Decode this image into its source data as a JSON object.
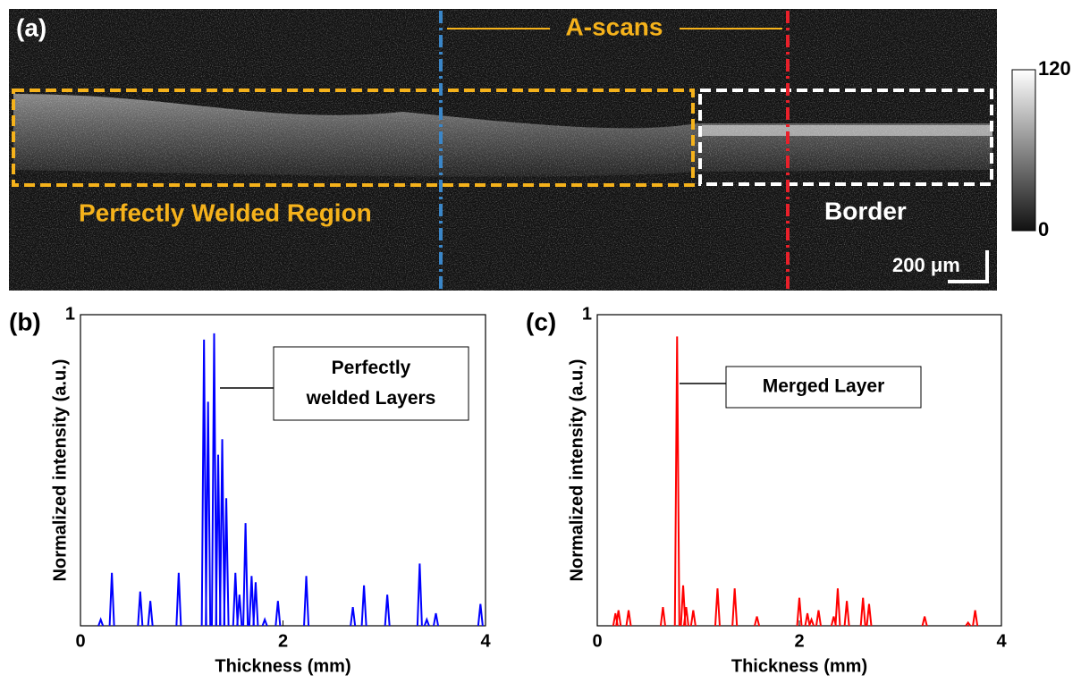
{
  "image_panel": {
    "label": "(a)",
    "a_scans": "A-scans",
    "region": "Perfectly Welded Region",
    "border": "Border",
    "scale_bar": "200 μm",
    "colorbar": {
      "lim": [
        0,
        120
      ],
      "ticks": [
        0,
        120
      ]
    }
  },
  "chart_data": [
    {
      "type": "line",
      "panel": "(b)",
      "xlabel": "Thickness (mm)",
      "ylabel": "Normalized intensity (a.u.)",
      "annotation": "Perfectly welded Layers",
      "xlim": [
        0,
        4
      ],
      "ylim": [
        0,
        1
      ],
      "xticks": [
        0,
        2,
        4
      ],
      "yticks": [
        1
      ],
      "series": [
        {
          "color": "#0000ff",
          "x": [
            0.2,
            0.31,
            0.59,
            0.69,
            0.97,
            1.22,
            1.26,
            1.32,
            1.36,
            1.4,
            1.44,
            1.53,
            1.57,
            1.63,
            1.69,
            1.73,
            1.82,
            1.95,
            2.23,
            2.69,
            2.8,
            3.03,
            3.35,
            3.42,
            3.51,
            3.95
          ],
          "values": [
            0.02,
            0.17,
            0.11,
            0.08,
            0.17,
            0.92,
            0.72,
            0.94,
            0.55,
            0.6,
            0.41,
            0.17,
            0.1,
            0.33,
            0.16,
            0.14,
            0.02,
            0.08,
            0.16,
            0.06,
            0.13,
            0.1,
            0.2,
            0.02,
            0.04,
            0.07
          ]
        }
      ]
    },
    {
      "type": "line",
      "panel": "(c)",
      "xlabel": "Thickness (mm)",
      "ylabel": "Normalized intensity (a.u.)",
      "annotation": "Merged Layer",
      "xlim": [
        0,
        4
      ],
      "ylim": [
        0,
        1
      ],
      "xticks": [
        0,
        2,
        4
      ],
      "yticks": [
        1
      ],
      "series": [
        {
          "color": "#ff0000",
          "x": [
            0.18,
            0.21,
            0.31,
            0.65,
            0.79,
            0.85,
            0.88,
            0.95,
            1.19,
            1.36,
            1.58,
            2.0,
            2.08,
            2.12,
            2.19,
            2.34,
            2.38,
            2.47,
            2.63,
            2.69,
            3.24,
            3.67,
            3.74
          ],
          "values": [
            0.04,
            0.05,
            0.05,
            0.06,
            0.93,
            0.13,
            0.06,
            0.05,
            0.12,
            0.12,
            0.03,
            0.09,
            0.04,
            0.02,
            0.05,
            0.03,
            0.12,
            0.08,
            0.09,
            0.07,
            0.03,
            0.01,
            0.05
          ]
        }
      ]
    }
  ]
}
